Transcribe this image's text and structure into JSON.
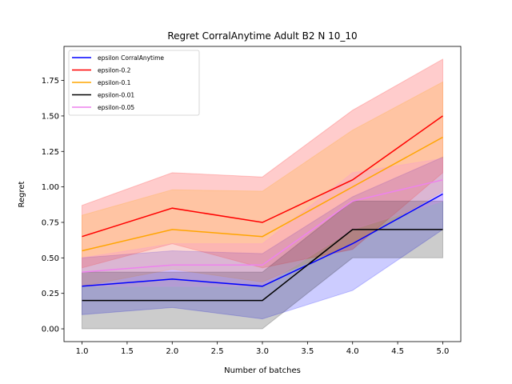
{
  "chart_data": {
    "type": "line",
    "title": "Regret CorralAnytime Adult B2 N 10_10",
    "xlabel": "Number of batches",
    "ylabel": "Regret",
    "xlim": [
      0.8,
      5.2
    ],
    "ylim": [
      -0.09,
      1.99
    ],
    "x": [
      1.0,
      2.0,
      3.0,
      4.0,
      5.0
    ],
    "x_ticks": [
      "1.0",
      "1.5",
      "2.0",
      "2.5",
      "3.0",
      "3.5",
      "4.0",
      "4.5",
      "5.0"
    ],
    "x_tick_values": [
      1.0,
      1.5,
      2.0,
      2.5,
      3.0,
      3.5,
      4.0,
      4.5,
      5.0
    ],
    "y_ticks": [
      "0.00",
      "0.25",
      "0.50",
      "0.75",
      "1.00",
      "1.25",
      "1.50",
      "1.75"
    ],
    "y_tick_values": [
      0.0,
      0.25,
      0.5,
      0.75,
      1.0,
      1.25,
      1.5,
      1.75
    ],
    "grid": false,
    "legend_position": "top-left",
    "series": [
      {
        "name": "epsilon CorralAnytime",
        "color": "#0000ff",
        "values": [
          0.3,
          0.35,
          0.3,
          0.6,
          0.95
        ],
        "lower": [
          0.1,
          0.15,
          0.07,
          0.27,
          0.7
        ],
        "upper": [
          0.5,
          0.55,
          0.53,
          0.93,
          1.21
        ]
      },
      {
        "name": "epsilon-0.2",
        "color": "#ff0000",
        "values": [
          0.65,
          0.85,
          0.75,
          1.05,
          1.5
        ],
        "lower": [
          0.43,
          0.6,
          0.43,
          0.56,
          1.1
        ],
        "upper": [
          0.87,
          1.1,
          1.07,
          1.54,
          1.9
        ]
      },
      {
        "name": "epsilon-0.1",
        "color": "#ffa500",
        "values": [
          0.55,
          0.7,
          0.65,
          1.0,
          1.35
        ],
        "lower": [
          0.3,
          0.42,
          0.33,
          0.6,
          0.97
        ],
        "upper": [
          0.8,
          0.98,
          0.97,
          1.4,
          1.74
        ]
      },
      {
        "name": "epsilon-0.01",
        "color": "#000000",
        "values": [
          0.2,
          0.2,
          0.2,
          0.7,
          0.7
        ],
        "lower": [
          0.0,
          0.0,
          0.0,
          0.5,
          0.5
        ],
        "upper": [
          0.4,
          0.4,
          0.4,
          0.9,
          0.9
        ]
      },
      {
        "name": "epsilon-0.05",
        "color": "#ee82ee",
        "values": [
          0.4,
          0.45,
          0.45,
          0.9,
          1.05
        ],
        "lower": [
          0.3,
          0.3,
          0.3,
          0.7,
          0.9
        ],
        "upper": [
          0.5,
          0.6,
          0.6,
          1.1,
          1.2
        ]
      }
    ]
  }
}
